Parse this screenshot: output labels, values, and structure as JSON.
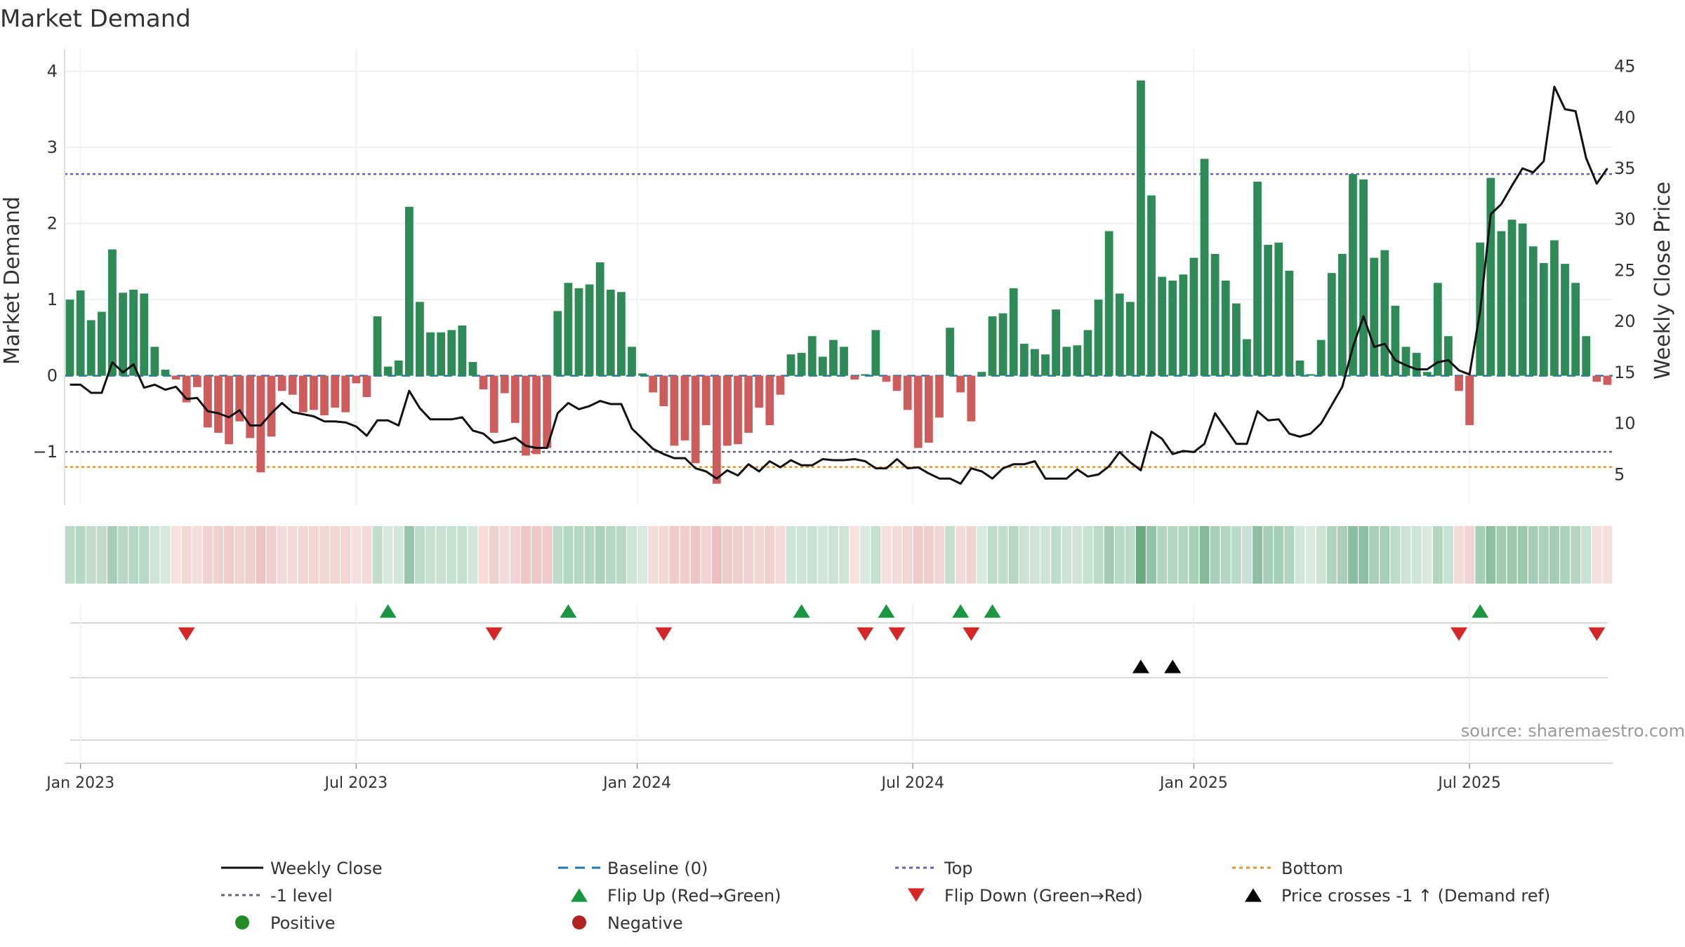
{
  "chart_data": {
    "type": "bar",
    "title": "Market Demand",
    "ylabel_left": "Market Demand",
    "ylabel_right": "Weekly Close Price",
    "ylim_left": [
      -1.7,
      4.2
    ],
    "ylim_right": [
      2,
      46
    ],
    "yticks_left": [
      {
        "v": 4,
        "label": "4"
      },
      {
        "v": 3,
        "label": "3"
      },
      {
        "v": 2,
        "label": "2"
      },
      {
        "v": 1,
        "label": "1"
      },
      {
        "v": 0,
        "label": "0"
      },
      {
        "v": -1,
        "label": "−1"
      }
    ],
    "yticks_right": [
      {
        "v": 45,
        "label": "45"
      },
      {
        "v": 40,
        "label": "40"
      },
      {
        "v": 35,
        "label": "35"
      },
      {
        "v": 30,
        "label": "30"
      },
      {
        "v": 25,
        "label": "25"
      },
      {
        "v": 20,
        "label": "20"
      },
      {
        "v": 15,
        "label": "15"
      },
      {
        "v": 10,
        "label": "10"
      },
      {
        "v": 5,
        "label": "5"
      }
    ],
    "x_ticks": [
      {
        "i": 1,
        "label": "Jan 2023"
      },
      {
        "i": 27,
        "label": "Jul 2023"
      },
      {
        "i": 53.5,
        "label": "Jan 2024"
      },
      {
        "i": 79.5,
        "label": "Jul 2024"
      },
      {
        "i": 106,
        "label": "Jan 2025"
      },
      {
        "i": 132,
        "label": "Jul 2025"
      }
    ],
    "top_level": 2.65,
    "bottom_level": -1.2,
    "minus_one_level": -1,
    "colors": {
      "positive": "#2e8b57",
      "negative": "#cd5c5c",
      "close": "#111111",
      "top": "#6a5acd",
      "bottom": "#e69520",
      "minus_one": "#666677",
      "baseline": "#1f77b4",
      "flip_up": "#1a9641",
      "flip_down": "#d62728",
      "cross": "#000000"
    },
    "demand": [
      1.0,
      1.12,
      0.73,
      0.84,
      1.66,
      1.09,
      1.13,
      1.08,
      0.38,
      0.08,
      -0.05,
      -0.35,
      -0.15,
      -0.68,
      -0.75,
      -0.9,
      -0.6,
      -0.82,
      -1.27,
      -0.8,
      -0.2,
      -0.25,
      -0.48,
      -0.45,
      -0.52,
      -0.42,
      -0.48,
      -0.1,
      -0.28,
      0.78,
      0.12,
      0.2,
      2.22,
      0.97,
      0.57,
      0.57,
      0.6,
      0.66,
      0.18,
      -0.18,
      -0.75,
      -0.23,
      -0.62,
      -1.05,
      -1.03,
      -0.95,
      0.85,
      1.22,
      1.15,
      1.2,
      1.49,
      1.13,
      1.1,
      0.38,
      0.03,
      -0.22,
      -0.4,
      -0.92,
      -0.85,
      -1.15,
      -0.65,
      -1.42,
      -0.92,
      -0.9,
      -0.75,
      -0.42,
      -0.65,
      -0.25,
      0.28,
      0.3,
      0.52,
      0.25,
      0.47,
      0.38,
      -0.05,
      0.02,
      0.6,
      -0.08,
      -0.2,
      -0.45,
      -0.95,
      -0.88,
      -0.55,
      0.63,
      -0.22,
      -0.6,
      0.05,
      0.78,
      0.82,
      1.15,
      0.42,
      0.35,
      0.28,
      0.87,
      0.38,
      0.4,
      0.6,
      1.0,
      1.9,
      1.08,
      0.97,
      3.88,
      2.37,
      1.3,
      1.25,
      1.33,
      1.55,
      2.85,
      1.6,
      1.25,
      0.95,
      0.48,
      2.55,
      1.72,
      1.75,
      1.38,
      0.2,
      0.02,
      0.47,
      1.35,
      1.6,
      2.65,
      2.58,
      1.55,
      1.65,
      0.92,
      0.38,
      0.3,
      0.05,
      1.22,
      0.52,
      -0.2,
      -0.65,
      1.75,
      2.6,
      1.9,
      2.05,
      2.0,
      1.7,
      1.48,
      1.78,
      1.47,
      1.22,
      0.52,
      -0.08,
      -0.12
    ],
    "close": [
      13.8,
      13.8,
      13.0,
      13.0,
      16.0,
      15.0,
      15.8,
      13.5,
      13.8,
      13.3,
      13.6,
      12.4,
      12.5,
      11.2,
      11.0,
      10.6,
      11.3,
      9.8,
      9.8,
      11.0,
      12.0,
      11.1,
      10.9,
      10.7,
      10.2,
      10.2,
      10.1,
      9.7,
      8.8,
      10.3,
      10.3,
      9.8,
      13.2,
      11.5,
      10.4,
      10.4,
      10.4,
      10.6,
      9.3,
      9.0,
      8.1,
      8.3,
      8.6,
      7.8,
      7.6,
      7.6,
      11.0,
      12.0,
      11.4,
      11.7,
      12.2,
      11.9,
      11.9,
      9.5,
      8.5,
      7.5,
      7.0,
      6.6,
      6.6,
      5.6,
      5.3,
      4.6,
      5.4,
      4.9,
      6.0,
      5.3,
      6.3,
      5.7,
      6.4,
      5.9,
      5.9,
      6.5,
      6.4,
      6.4,
      6.5,
      6.3,
      5.6,
      5.6,
      6.5,
      5.6,
      5.7,
      5.1,
      4.6,
      4.6,
      4.1,
      5.6,
      5.3,
      4.6,
      5.6,
      6.0,
      6.0,
      6.3,
      4.6,
      4.6,
      4.6,
      5.5,
      4.8,
      5.0,
      5.8,
      7.2,
      6.2,
      5.4,
      9.2,
      8.5,
      7.0,
      7.3,
      7.2,
      8.0,
      11.0,
      9.5,
      8.0,
      8.0,
      11.2,
      10.3,
      10.4,
      9.0,
      8.7,
      9.0,
      10.0,
      11.8,
      13.6,
      17.5,
      20.5,
      17.5,
      17.8,
      16.2,
      15.7,
      15.3,
      15.3,
      16.0,
      16.2,
      15.2,
      14.8,
      21.0,
      30.5,
      31.5,
      33.3,
      35.0,
      34.6,
      35.7,
      43.0,
      40.8,
      40.6,
      36.0,
      33.5,
      35.0
    ],
    "flip_up": [
      30,
      47,
      69,
      77,
      84,
      87,
      133
    ],
    "flip_down": [
      11,
      40,
      56,
      75,
      78,
      85,
      131,
      144
    ],
    "cross_up": [
      101,
      104
    ],
    "source": "source: sharemaestro.com",
    "legend": [
      {
        "label": "Weekly Close",
        "symbol": "solid-line",
        "color": "#111111"
      },
      {
        "label": "Baseline (0)",
        "symbol": "dash-line",
        "color": "#1f77b4"
      },
      {
        "label": "Top",
        "symbol": "dot-line",
        "color": "#6a5acd"
      },
      {
        "label": "Bottom",
        "symbol": "dot-line",
        "color": "#e69520"
      },
      {
        "label": "-1 level",
        "symbol": "dot-line",
        "color": "#666677"
      },
      {
        "label": "Flip Up (Red→Green)",
        "symbol": "triangle-up",
        "color": "#1a9641"
      },
      {
        "label": "Flip Down (Green→Red)",
        "symbol": "triangle-down",
        "color": "#d62728"
      },
      {
        "label": "Price crosses -1 ↑ (Demand ref)",
        "symbol": "triangle-up",
        "color": "#000000"
      },
      {
        "label": "Positive",
        "symbol": "circle",
        "color": "#228b22"
      },
      {
        "label": "Negative",
        "symbol": "circle",
        "color": "#b22222"
      }
    ]
  }
}
